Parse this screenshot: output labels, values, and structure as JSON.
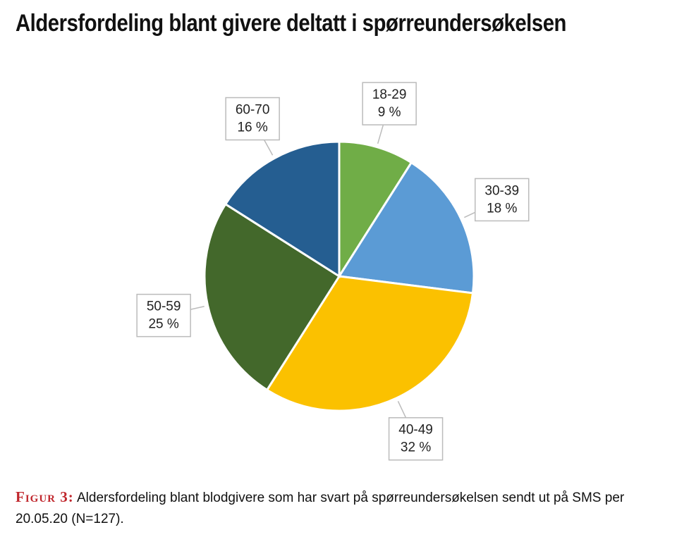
{
  "chart_data": {
    "type": "pie",
    "title": "Aldersfordeling blant givere deltatt i spørreundersøkelsen",
    "categories": [
      "18-29",
      "30-39",
      "40-49",
      "50-59",
      "60-70"
    ],
    "values": [
      9,
      18,
      32,
      25,
      16
    ],
    "value_labels": [
      "9 %",
      "18 %",
      "32 %",
      "25 %",
      "16 %"
    ],
    "colors": [
      "#70ad47",
      "#5b9bd5",
      "#fbc100",
      "#43682b",
      "#255e91"
    ]
  },
  "caption": {
    "label": "Figur 3:",
    "text": "Aldersfordeling blant blodgivere som har svart på spørreundersøkelsen sendt ut på SMS per 20.05.20 (N=127)."
  }
}
